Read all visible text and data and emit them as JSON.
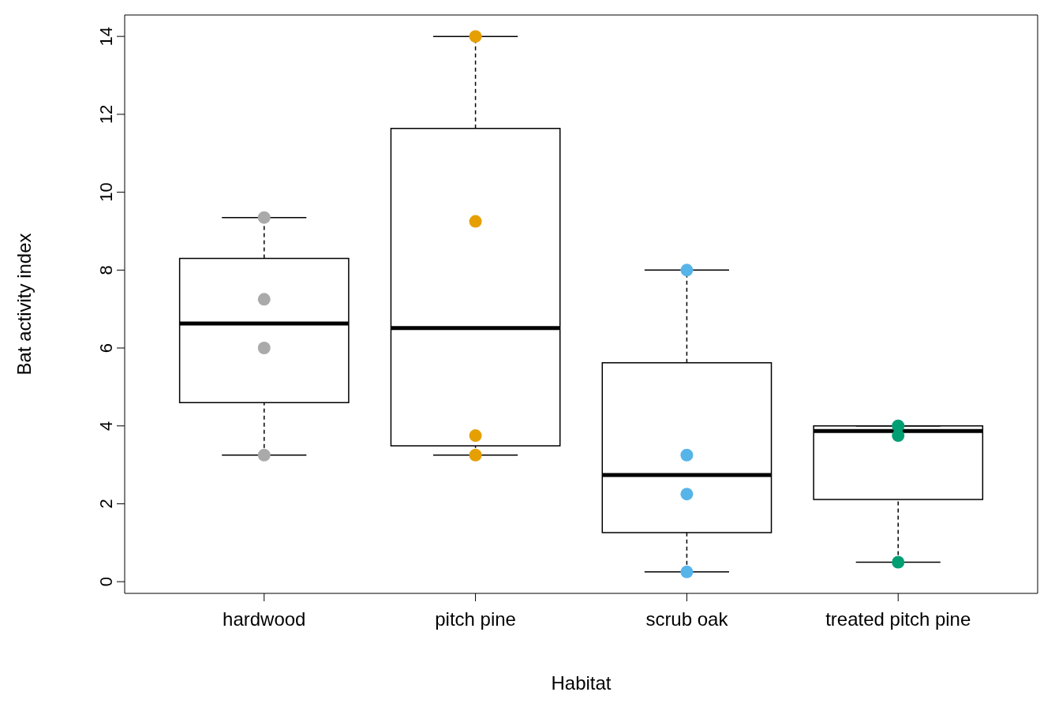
{
  "chart_data": {
    "type": "box",
    "xlabel": "Habitat",
    "ylabel": "Bat activity index",
    "categories": [
      "hardwood",
      "pitch pine",
      "scrub oak",
      "treated pitch pine"
    ],
    "boxes": [
      {
        "low": 3.25,
        "q1": 4.6,
        "median": 6.63,
        "q3": 8.3,
        "high": 9.35
      },
      {
        "low": 3.25,
        "q1": 3.49,
        "median": 6.51,
        "q3": 11.64,
        "high": 14
      },
      {
        "low": 0.25,
        "q1": 1.26,
        "median": 2.74,
        "q3": 5.62,
        "high": 8
      },
      {
        "low": 0.5,
        "q1": 2.11,
        "median": 3.87,
        "q3": 4,
        "high": 4
      }
    ],
    "series": [
      {
        "type": "scatter",
        "color": "#aaaaaa",
        "x": [
          "hardwood",
          "hardwood",
          "hardwood",
          "hardwood"
        ],
        "values": [
          9.35,
          7.25,
          6.0,
          3.25
        ]
      },
      {
        "type": "scatter",
        "color": "#e69f00",
        "x": [
          "pitch pine",
          "pitch pine",
          "pitch pine",
          "pitch pine"
        ],
        "values": [
          14,
          9.25,
          3.75,
          3.25
        ]
      },
      {
        "type": "scatter",
        "color": "#56b4e9",
        "x": [
          "scrub oak",
          "scrub oak",
          "scrub oak",
          "scrub oak"
        ],
        "values": [
          8,
          3.25,
          2.25,
          0.25
        ]
      },
      {
        "type": "scatter",
        "color": "#009e73",
        "x": [
          "treated pitch pine",
          "treated pitch pine",
          "treated pitch pine"
        ],
        "values": [
          4,
          3.75,
          0.5
        ]
      }
    ],
    "ylim": [
      -0.3,
      14.55
    ],
    "yticks": [
      0,
      2,
      4,
      6,
      8,
      10,
      12,
      14
    ]
  }
}
